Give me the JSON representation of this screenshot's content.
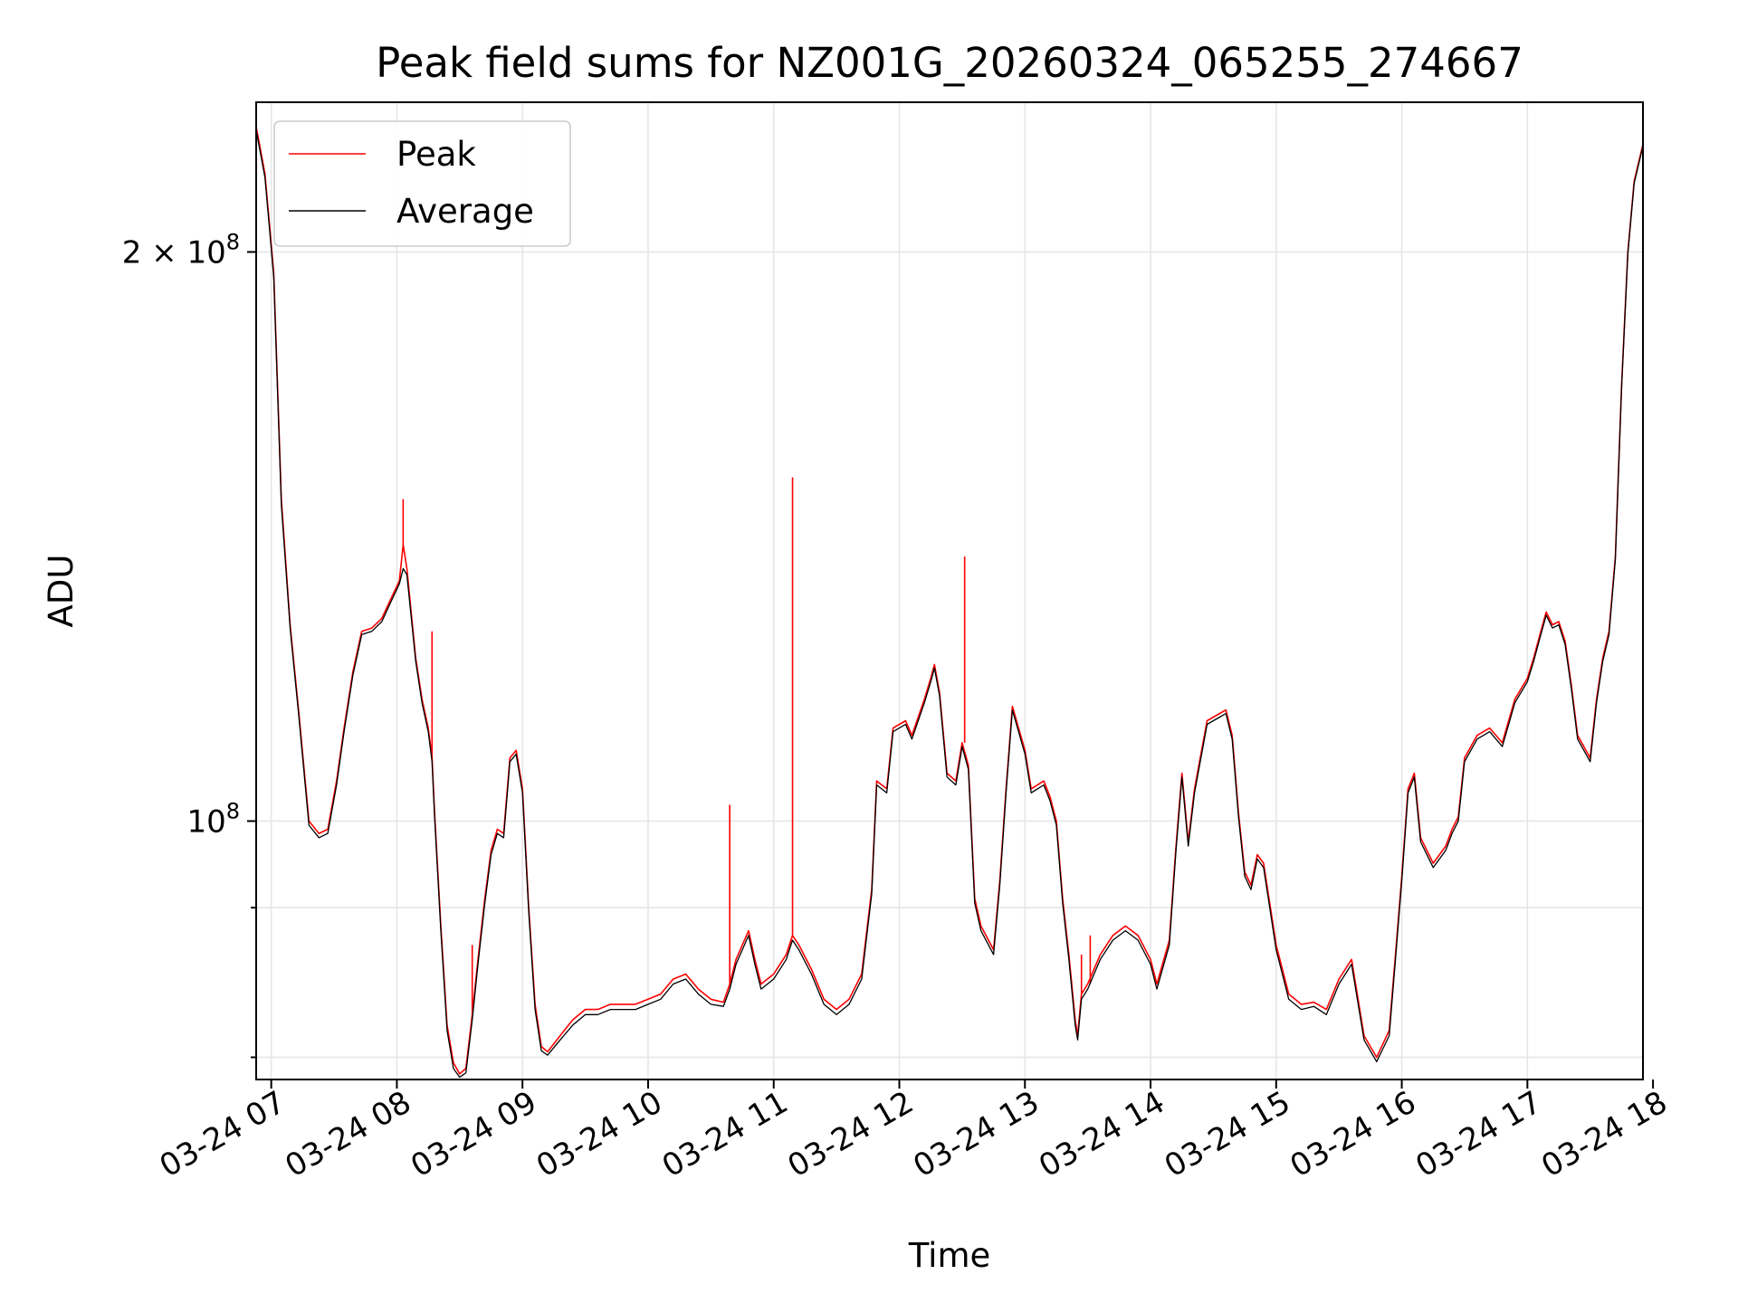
{
  "chart_data": {
    "type": "line",
    "title": "Peak field sums for NZ001G_20260324_065255_274667",
    "xlabel": "Time",
    "ylabel": "ADU",
    "yscale": "log",
    "ylim": [
      73000000,
      240000000
    ],
    "xlim": [
      6.88,
      17.92
    ],
    "x_unit": "hours on 2026-03-24",
    "x_ticks": [
      {
        "value": 7,
        "label": "03-24 07"
      },
      {
        "value": 8,
        "label": "03-24 08"
      },
      {
        "value": 9,
        "label": "03-24 09"
      },
      {
        "value": 10,
        "label": "03-24 10"
      },
      {
        "value": 11,
        "label": "03-24 11"
      },
      {
        "value": 12,
        "label": "03-24 12"
      },
      {
        "value": 13,
        "label": "03-24 13"
      },
      {
        "value": 14,
        "label": "03-24 14"
      },
      {
        "value": 15,
        "label": "03-24 15"
      },
      {
        "value": 16,
        "label": "03-24 16"
      },
      {
        "value": 17,
        "label": "03-24 17"
      },
      {
        "value": 18,
        "label": "03-24 18"
      }
    ],
    "y_ticks_major": [
      {
        "value": 100000000,
        "base": "10",
        "exp": "8",
        "mult": ""
      },
      {
        "value": 200000000,
        "base": "10",
        "exp": "8",
        "mult": "2 × "
      }
    ],
    "y_ticks_minor": [
      75000000,
      90000000
    ],
    "grid": true,
    "legend_position": "top-left",
    "series": [
      {
        "name": "Peak",
        "color": "#ff0000",
        "x": [
          6.88,
          6.95,
          7.02,
          7.08,
          7.15,
          7.22,
          7.3,
          7.38,
          7.45,
          7.52,
          7.58,
          7.65,
          7.72,
          7.8,
          7.88,
          7.95,
          8.02,
          8.05,
          8.08,
          8.15,
          8.2,
          8.25,
          8.28,
          8.3,
          8.35,
          8.4,
          8.45,
          8.5,
          8.55,
          8.6,
          8.65,
          8.7,
          8.75,
          8.8,
          8.85,
          8.9,
          8.95,
          9.0,
          9.05,
          9.1,
          9.15,
          9.2,
          9.3,
          9.4,
          9.5,
          9.6,
          9.7,
          9.8,
          9.9,
          10.0,
          10.1,
          10.2,
          10.3,
          10.4,
          10.5,
          10.6,
          10.65,
          10.7,
          10.8,
          10.85,
          10.9,
          11.0,
          11.1,
          11.15,
          11.2,
          11.3,
          11.4,
          11.5,
          11.6,
          11.7,
          11.78,
          11.82,
          11.9,
          11.95,
          12.05,
          12.1,
          12.2,
          12.25,
          12.28,
          12.32,
          12.38,
          12.45,
          12.5,
          12.55,
          12.6,
          12.65,
          12.75,
          12.8,
          12.85,
          12.9,
          13.0,
          13.05,
          13.15,
          13.2,
          13.25,
          13.3,
          13.35,
          13.4,
          13.42,
          13.45,
          13.5,
          13.6,
          13.7,
          13.8,
          13.9,
          14.0,
          14.05,
          14.15,
          14.2,
          14.25,
          14.3,
          14.35,
          14.45,
          14.55,
          14.6,
          14.65,
          14.7,
          14.75,
          14.8,
          14.85,
          14.9,
          15.0,
          15.1,
          15.2,
          15.3,
          15.4,
          15.5,
          15.6,
          15.7,
          15.8,
          15.9,
          15.95,
          16.0,
          16.05,
          16.1,
          16.15,
          16.25,
          16.35,
          16.4,
          16.45,
          16.5,
          16.6,
          16.7,
          16.8,
          16.9,
          17.0,
          17.05,
          17.1,
          17.15,
          17.2,
          17.25,
          17.3,
          17.35,
          17.4,
          17.5,
          17.55,
          17.6,
          17.65,
          17.7,
          17.75,
          17.8,
          17.85,
          17.92
        ],
        "values": [
          233000000,
          220000000,
          195000000,
          148000000,
          127000000,
          114000000,
          100000000,
          98500000,
          99000000,
          105000000,
          112000000,
          120000000,
          126000000,
          126500000,
          128000000,
          131000000,
          134000000,
          140000000,
          136000000,
          122000000,
          116000000,
          112000000,
          108000000,
          101000000,
          88000000,
          78000000,
          74500000,
          73500000,
          74000000,
          79000000,
          85000000,
          91000000,
          96500000,
          99000000,
          98500000,
          108000000,
          109000000,
          104000000,
          90000000,
          80000000,
          76000000,
          75500000,
          77000000,
          78500000,
          79500000,
          79500000,
          80000000,
          80000000,
          80000000,
          80500000,
          81000000,
          82500000,
          83000000,
          81500000,
          80500000,
          80200000,
          82000000,
          84500000,
          87500000,
          84500000,
          82000000,
          83000000,
          85000000,
          87000000,
          86000000,
          83500000,
          80500000,
          79500000,
          80500000,
          83000000,
          92000000,
          105000000,
          104000000,
          112000000,
          113000000,
          111000000,
          116000000,
          119000000,
          121000000,
          117000000,
          106000000,
          105000000,
          110000000,
          107000000,
          91000000,
          88000000,
          85500000,
          93000000,
          104000000,
          115000000,
          109000000,
          104000000,
          105000000,
          103000000,
          100000000,
          91000000,
          85000000,
          78500000,
          77000000,
          81000000,
          82000000,
          85000000,
          87000000,
          88000000,
          87000000,
          84500000,
          82000000,
          86500000,
          96500000,
          106000000,
          97500000,
          104000000,
          113000000,
          114000000,
          114500000,
          111000000,
          101000000,
          94000000,
          92500000,
          96000000,
          95000000,
          86000000,
          81000000,
          80000000,
          80200000,
          79500000,
          82500000,
          84500000,
          77000000,
          75000000,
          77500000,
          85000000,
          93500000,
          104000000,
          106000000,
          98000000,
          95000000,
          97000000,
          99000000,
          100500000,
          108000000,
          111000000,
          112000000,
          110000000,
          116000000,
          119000000,
          122000000,
          125500000,
          129000000,
          127000000,
          127500000,
          124500000,
          118000000,
          111000000,
          108000000,
          116000000,
          122000000,
          126000000,
          138000000,
          170000000,
          200000000,
          218000000,
          228000000
        ],
        "spikes": [
          {
            "x": 8.05,
            "value": 148000000
          },
          {
            "x": 8.28,
            "value": 126000000
          },
          {
            "x": 8.6,
            "value": 86000000
          },
          {
            "x": 10.65,
            "value": 102000000
          },
          {
            "x": 11.15,
            "value": 152000000
          },
          {
            "x": 12.52,
            "value": 138000000
          },
          {
            "x": 13.45,
            "value": 85000000
          },
          {
            "x": 13.52,
            "value": 87000000
          }
        ]
      },
      {
        "name": "Average",
        "color": "#000000",
        "x": [
          6.88,
          6.95,
          7.02,
          7.08,
          7.15,
          7.22,
          7.3,
          7.38,
          7.45,
          7.52,
          7.58,
          7.65,
          7.72,
          7.8,
          7.88,
          7.95,
          8.02,
          8.05,
          8.08,
          8.15,
          8.2,
          8.25,
          8.28,
          8.3,
          8.35,
          8.4,
          8.45,
          8.5,
          8.55,
          8.6,
          8.65,
          8.7,
          8.75,
          8.8,
          8.85,
          8.9,
          8.95,
          9.0,
          9.05,
          9.1,
          9.15,
          9.2,
          9.3,
          9.4,
          9.5,
          9.6,
          9.7,
          9.8,
          9.9,
          10.0,
          10.1,
          10.2,
          10.3,
          10.4,
          10.5,
          10.6,
          10.65,
          10.7,
          10.8,
          10.85,
          10.9,
          11.0,
          11.1,
          11.15,
          11.2,
          11.3,
          11.4,
          11.5,
          11.6,
          11.7,
          11.78,
          11.82,
          11.9,
          11.95,
          12.05,
          12.1,
          12.2,
          12.25,
          12.28,
          12.32,
          12.38,
          12.45,
          12.5,
          12.55,
          12.6,
          12.65,
          12.75,
          12.8,
          12.85,
          12.9,
          13.0,
          13.05,
          13.15,
          13.2,
          13.25,
          13.3,
          13.35,
          13.4,
          13.42,
          13.45,
          13.5,
          13.6,
          13.7,
          13.8,
          13.9,
          14.0,
          14.05,
          14.15,
          14.2,
          14.25,
          14.3,
          14.35,
          14.45,
          14.55,
          14.6,
          14.65,
          14.7,
          14.75,
          14.8,
          14.85,
          14.9,
          15.0,
          15.1,
          15.2,
          15.3,
          15.4,
          15.5,
          15.6,
          15.7,
          15.8,
          15.9,
          15.95,
          16.0,
          16.05,
          16.1,
          16.15,
          16.25,
          16.35,
          16.4,
          16.45,
          16.5,
          16.6,
          16.7,
          16.8,
          16.9,
          17.0,
          17.05,
          17.1,
          17.15,
          17.2,
          17.25,
          17.3,
          17.35,
          17.4,
          17.5,
          17.55,
          17.6,
          17.65,
          17.7,
          17.75,
          17.8,
          17.85,
          17.92
        ],
        "values": [
          232000000,
          219000000,
          194000000,
          147000000,
          126500000,
          113500000,
          99500000,
          98000000,
          98500000,
          104500000,
          111500000,
          119500000,
          125500000,
          126000000,
          127500000,
          130500000,
          133500000,
          136000000,
          135000000,
          121500000,
          115500000,
          111500000,
          107500000,
          100500000,
          87500000,
          77500000,
          74000000,
          73200000,
          73600000,
          78500000,
          84500000,
          90500000,
          96000000,
          98500000,
          98000000,
          107500000,
          108500000,
          103500000,
          89500000,
          79500000,
          75600000,
          75200000,
          76600000,
          78000000,
          79000000,
          79000000,
          79500000,
          79500000,
          79500000,
          80000000,
          80500000,
          82000000,
          82500000,
          81000000,
          80000000,
          79800000,
          81500000,
          84000000,
          87000000,
          84000000,
          81500000,
          82500000,
          84500000,
          86500000,
          85500000,
          83000000,
          80000000,
          79000000,
          80000000,
          82500000,
          91500000,
          104500000,
          103500000,
          111500000,
          112500000,
          110500000,
          115500000,
          118500000,
          120500000,
          116500000,
          105500000,
          104500000,
          109500000,
          106500000,
          90500000,
          87500000,
          85000000,
          92500000,
          103500000,
          114500000,
          108500000,
          103500000,
          104500000,
          102500000,
          99500000,
          90500000,
          84500000,
          78000000,
          76600000,
          80500000,
          81500000,
          84500000,
          86500000,
          87500000,
          86500000,
          84000000,
          81500000,
          86000000,
          96000000,
          105500000,
          97000000,
          103500000,
          112500000,
          113500000,
          114000000,
          110500000,
          100500000,
          93500000,
          92000000,
          95500000,
          94500000,
          85500000,
          80500000,
          79500000,
          79800000,
          79000000,
          82000000,
          84000000,
          76600000,
          74600000,
          77000000,
          84500000,
          93000000,
          103500000,
          105500000,
          97500000,
          94500000,
          96500000,
          98500000,
          100000000,
          107500000,
          110500000,
          111500000,
          109500000,
          115500000,
          118500000,
          121500000,
          125000000,
          128500000,
          126500000,
          127000000,
          124000000,
          117500000,
          110500000,
          107500000,
          115500000,
          121500000,
          125500000,
          137500000,
          169500000,
          199500000,
          217500000,
          227500000
        ]
      }
    ]
  }
}
